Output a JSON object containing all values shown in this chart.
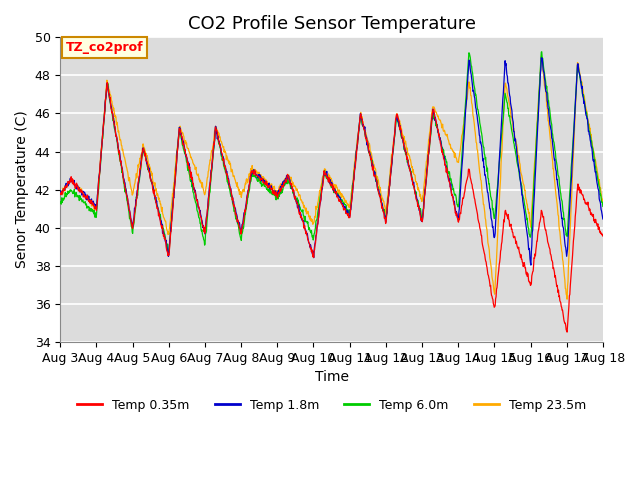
{
  "title": "CO2 Profile Sensor Temperature",
  "xlabel": "Time",
  "ylabel": "Senor Temperature (C)",
  "ylim": [
    34,
    50
  ],
  "xlim": [
    0,
    15
  ],
  "yticks": [
    34,
    36,
    38,
    40,
    42,
    44,
    46,
    48,
    50
  ],
  "xtick_labels": [
    "Aug 3",
    "Aug 4",
    "Aug 5",
    "Aug 6",
    "Aug 7",
    "Aug 8",
    "Aug 9",
    "Aug 10",
    "Aug 11",
    "Aug 12",
    "Aug 13",
    "Aug 14",
    "Aug 15",
    "Aug 16",
    "Aug 17",
    "Aug 18"
  ],
  "bg_color": "#dcdcdc",
  "legend_label": "TZ_co2prof",
  "series_labels": [
    "Temp 0.35m",
    "Temp 1.8m",
    "Temp 6.0m",
    "Temp 23.5m"
  ],
  "series_colors": [
    "#ff0000",
    "#0000cc",
    "#00cc00",
    "#ffaa00"
  ],
  "title_fontsize": 13,
  "axis_label_fontsize": 10,
  "tick_fontsize": 9
}
